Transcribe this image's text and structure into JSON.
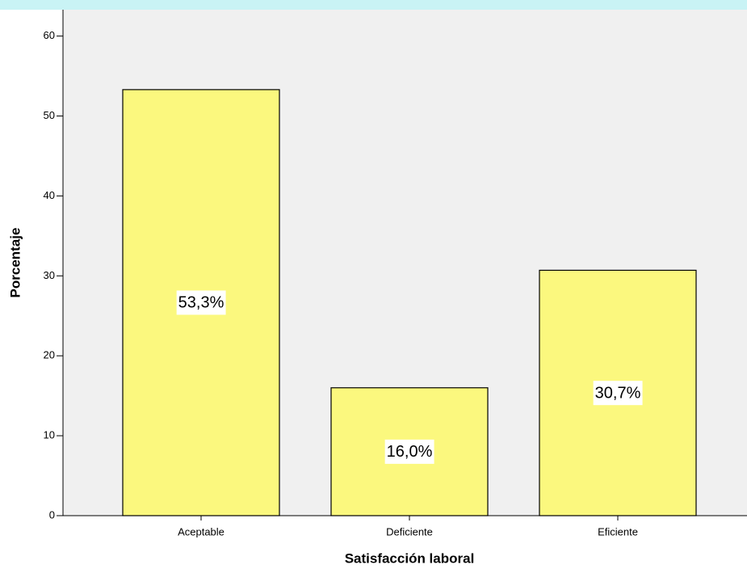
{
  "chart_data": {
    "type": "bar",
    "x_label": "Satisfacción laboral",
    "y_label": "Porcentaje",
    "categories": [
      "Aceptable",
      "Deficiente",
      "Eficiente"
    ],
    "values": [
      53.3,
      16.0,
      30.7
    ],
    "value_labels": [
      "53,3%",
      "16,0%",
      "30,7%"
    ],
    "color": "#fbf87e",
    "ylim": [
      0,
      63.3
    ],
    "yticks": [
      0,
      10,
      20,
      30,
      40,
      50,
      60
    ]
  }
}
